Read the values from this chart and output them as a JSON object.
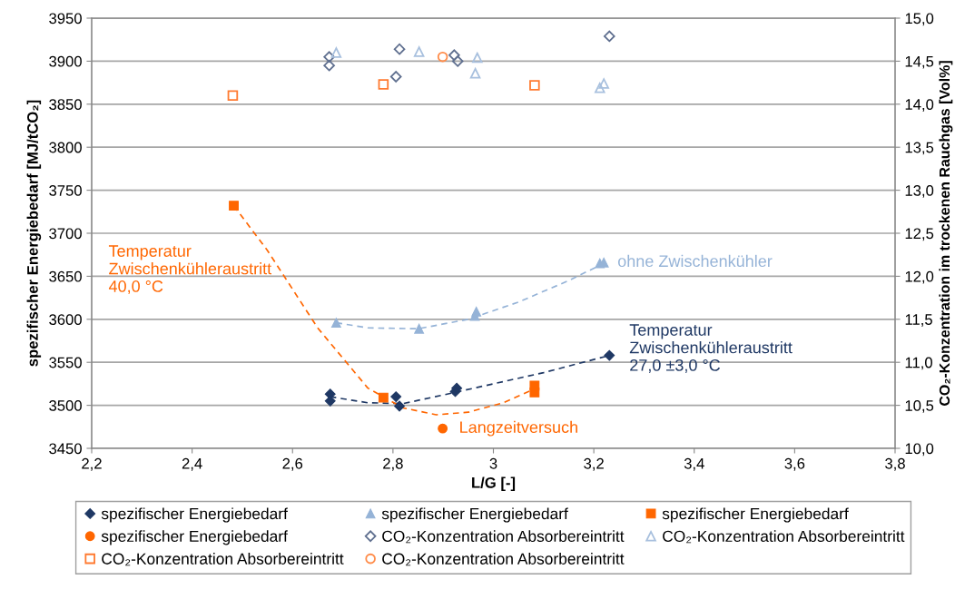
{
  "chart_data": {
    "type": "scatter",
    "xlabel": "L/G [-]",
    "ylabel": "spezifischer Energiebedarf [MJ/tCO₂]",
    "y2label": "CO₂-Konzentration im trockenen Rauchgas [Vol%]",
    "xlim": [
      2.2,
      3.8
    ],
    "xticks": [
      {
        "value": 2.2,
        "label": "2,2"
      },
      {
        "value": 2.4,
        "label": "2,4"
      },
      {
        "value": 2.6,
        "label": "2,6"
      },
      {
        "value": 2.8,
        "label": "2,8"
      },
      3,
      {
        "value": 3.2,
        "label": "3,2"
      },
      {
        "value": 3.4,
        "label": "3,4"
      },
      {
        "value": 3.6,
        "label": "3,6"
      },
      {
        "value": 3.8,
        "label": "3,8"
      }
    ],
    "ylim": [
      3450,
      3950
    ],
    "yticks": [
      3450,
      3500,
      3550,
      3600,
      3650,
      3700,
      3750,
      3800,
      3850,
      3900,
      3950
    ],
    "y2lim": [
      10,
      15
    ],
    "y2ticks": [
      {
        "value": 10,
        "label": "10,0"
      },
      {
        "value": 10.5,
        "label": "10,5"
      },
      {
        "value": 11,
        "label": "11,0"
      },
      {
        "value": 11.5,
        "label": "11,5"
      },
      {
        "value": 12,
        "label": "12,0"
      },
      {
        "value": 12.5,
        "label": "12,5"
      },
      {
        "value": 13,
        "label": "13,0"
      },
      {
        "value": 13.5,
        "label": "13,5"
      },
      {
        "value": 14,
        "label": "14,0"
      },
      {
        "value": 14.5,
        "label": "14,5"
      },
      {
        "value": 15,
        "label": "15,0"
      }
    ],
    "grid": "y",
    "legend": "bottom",
    "series": [
      {
        "name": "spezifischer Energiebedarf",
        "color": "#1f3864",
        "marker": "diamond",
        "x": [
          2.675,
          2.675,
          2.806,
          2.813,
          2.924,
          2.927,
          3.231
        ],
        "values": [
          3513,
          3505,
          3510,
          3499,
          3516,
          3520,
          3558
        ]
      },
      {
        "name": "spezifischer Energiebedarf",
        "color": "#95b3d7",
        "marker": "triangle",
        "x": [
          2.687,
          2.852,
          2.966,
          2.963,
          3.212,
          3.22
        ],
        "values": [
          3596,
          3589,
          3609,
          3604,
          3665,
          3666
        ]
      },
      {
        "name": "spezifischer Energiebedarf",
        "color": "#ff6600",
        "marker": "square",
        "x": [
          2.483,
          2.781,
          3.082,
          3.082
        ],
        "values": [
          3732,
          3509,
          3523,
          3515
        ]
      },
      {
        "name": "spezifischer Energiebedarf",
        "color": "#ff6600",
        "marker": "circle",
        "x": [
          2.899
        ],
        "values": [
          3473
        ]
      },
      {
        "name": "CO₂-Konzentration Absorbereintritt",
        "color": "#5f6f8f",
        "marker": "diamond",
        "axis": "y2",
        "x": [
          2.673,
          2.673,
          2.813,
          2.806,
          2.922,
          2.929,
          3.231
        ],
        "values": [
          14.55,
          14.45,
          14.64,
          14.32,
          14.57,
          14.5,
          14.79
        ]
      },
      {
        "name": "CO₂-Konzentration Absorbereintritt",
        "color": "#a8c0de",
        "marker": "triangle",
        "axis": "y2",
        "x": [
          2.687,
          2.852,
          2.968,
          2.964,
          3.212,
          3.22
        ],
        "values": [
          14.6,
          14.61,
          14.54,
          14.36,
          14.19,
          14.24
        ]
      },
      {
        "name": "CO₂-Konzentration Absorbereintritt",
        "color": "#ff7a30",
        "marker": "square",
        "axis": "y2",
        "x": [
          2.481,
          2.781,
          3.082
        ],
        "values": [
          14.1,
          14.23,
          14.22
        ]
      },
      {
        "name": "CO₂-Konzentration Absorbereintritt",
        "color": "#ff8c4a",
        "marker": "circle",
        "axis": "y2",
        "x": [
          2.899
        ],
        "values": [
          14.55
        ]
      },
      {
        "type": "line",
        "color": "#1f3864",
        "line_style": "dashed",
        "x": [
          2.675,
          2.75,
          2.82,
          2.9,
          3.0,
          3.1,
          3.231
        ],
        "values": [
          3510,
          3503,
          3502,
          3512,
          3525,
          3538,
          3558
        ]
      },
      {
        "type": "line",
        "color": "#95b3d7",
        "line_style": "dashed",
        "x": [
          2.687,
          2.75,
          2.85,
          2.95,
          3.05,
          3.15,
          3.22
        ],
        "values": [
          3596,
          3590,
          3589,
          3600,
          3620,
          3645,
          3665
        ]
      },
      {
        "type": "line",
        "color": "#ff6600",
        "line_style": "dashed",
        "x": [
          2.483,
          2.55,
          2.65,
          2.75,
          2.82,
          2.886,
          2.95,
          3.02,
          3.082
        ],
        "values": [
          3732,
          3680,
          3590,
          3520,
          3497,
          3489,
          3492,
          3503,
          3519
        ]
      }
    ],
    "annotations": [
      {
        "text": "Temperatur\nZwischenkühleraustritt\n40,0 °C",
        "x": 2.483,
        "y": 3732
      },
      {
        "text": "ohne Zwischenkühler",
        "x": 3.22,
        "y": 3666
      },
      {
        "text": "Temperatur\nZwischenkühleraustritt\n27,0 ±3,0 °C",
        "x": 3.231,
        "y": 3558
      },
      {
        "text": "Langzeitversuch",
        "x": 2.899,
        "y": 3473
      }
    ]
  }
}
